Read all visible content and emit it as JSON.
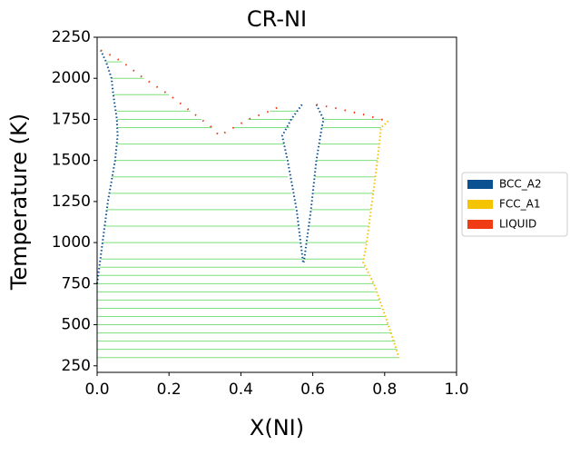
{
  "chart_data": {
    "type": "phase",
    "title": "CR-NI",
    "xlabel": "X(NI)",
    "ylabel": "Temperature (K)",
    "xlim": [
      0,
      1
    ],
    "ylim": [
      210,
      2250
    ],
    "xticks": [
      {
        "value": 0,
        "label": "0.0"
      },
      0.2,
      0.4,
      0.6,
      0.8,
      {
        "value": 1,
        "label": "1.0"
      }
    ],
    "yticks": [
      250,
      500,
      750,
      1000,
      1250,
      1500,
      1750,
      2000,
      2250
    ],
    "legend": "right",
    "series": [
      {
        "name": "BCC_A2",
        "color": "#0a5191",
        "x": [
          0.0,
          0.003,
          0.015,
          0.03,
          0.05,
          0.057,
          0.055,
          0.045,
          0.04,
          0.025,
          0.01,
          null,
          0.57,
          0.54,
          0.515,
          0.53,
          0.555,
          0.573,
          null,
          0.61,
          0.63,
          0.625,
          0.61,
          0.595,
          0.575
        ],
        "y": [
          750,
          800,
          1000,
          1250,
          1500,
          1650,
          1750,
          1900,
          2000,
          2100,
          2170,
          null,
          1840,
          1750,
          1650,
          1500,
          1200,
          880,
          null,
          1840,
          1750,
          1700,
          1500,
          1200,
          880
        ]
      },
      {
        "name": "FCC_A1",
        "color": "#f5c400",
        "x": [
          0.81,
          0.79,
          0.78,
          0.765,
          0.75,
          0.74,
          0.77,
          0.81,
          0.84
        ],
        "y": [
          1740,
          1700,
          1500,
          1250,
          1000,
          880,
          750,
          500,
          300
        ]
      },
      {
        "name": "LIQUID",
        "color": "#f03c14",
        "x": [
          0.01,
          0.03,
          0.07,
          0.13,
          0.2,
          0.26,
          0.32,
          0.34,
          0.38,
          0.42,
          0.48,
          0.52,
          null,
          0.61,
          0.66,
          0.7,
          0.74,
          0.79,
          0.81
        ],
        "y": [
          2170,
          2150,
          2100,
          2000,
          1900,
          1800,
          1700,
          1650,
          1700,
          1750,
          1800,
          1840,
          null,
          1840,
          1820,
          1800,
          1780,
          1750,
          1740
        ]
      }
    ],
    "tie_lines": {
      "color": "#7ee07e",
      "T": [
        300,
        350,
        400,
        450,
        500,
        550,
        600,
        650,
        700,
        750,
        800,
        850,
        900,
        900,
        1000,
        1000,
        1100,
        1100,
        1200,
        1200,
        1300,
        1300,
        1400,
        1400,
        1500,
        1500,
        1600,
        1600,
        1700,
        1700,
        1700,
        1750,
        1750,
        1750,
        1800,
        1800,
        1900,
        2000,
        2100
      ],
      "x_start": [
        0,
        0,
        0,
        0,
        0,
        0,
        0,
        0,
        0,
        0,
        0.005,
        0.008,
        0.01,
        0.576,
        0.015,
        0.58,
        0.02,
        0.588,
        0.027,
        0.595,
        0.033,
        0.6,
        0.04,
        0.605,
        0.05,
        0.61,
        0.055,
        0.618,
        0.057,
        0.38,
        0.625,
        0.056,
        0.42,
        0.63,
        0.055,
        0.48,
        0.045,
        0.04,
        0.025
      ],
      "x_end": [
        0.84,
        0.835,
        0.83,
        0.82,
        0.81,
        0.8,
        0.79,
        0.785,
        0.775,
        0.77,
        0.755,
        0.745,
        0.572,
        0.742,
        0.568,
        0.75,
        0.56,
        0.755,
        0.55,
        0.76,
        0.54,
        0.768,
        0.53,
        0.773,
        0.525,
        0.78,
        0.52,
        0.785,
        0.32,
        0.535,
        0.79,
        0.29,
        0.545,
        0.79,
        0.26,
        0.555,
        0.2,
        0.13,
        0.07
      ]
    }
  }
}
